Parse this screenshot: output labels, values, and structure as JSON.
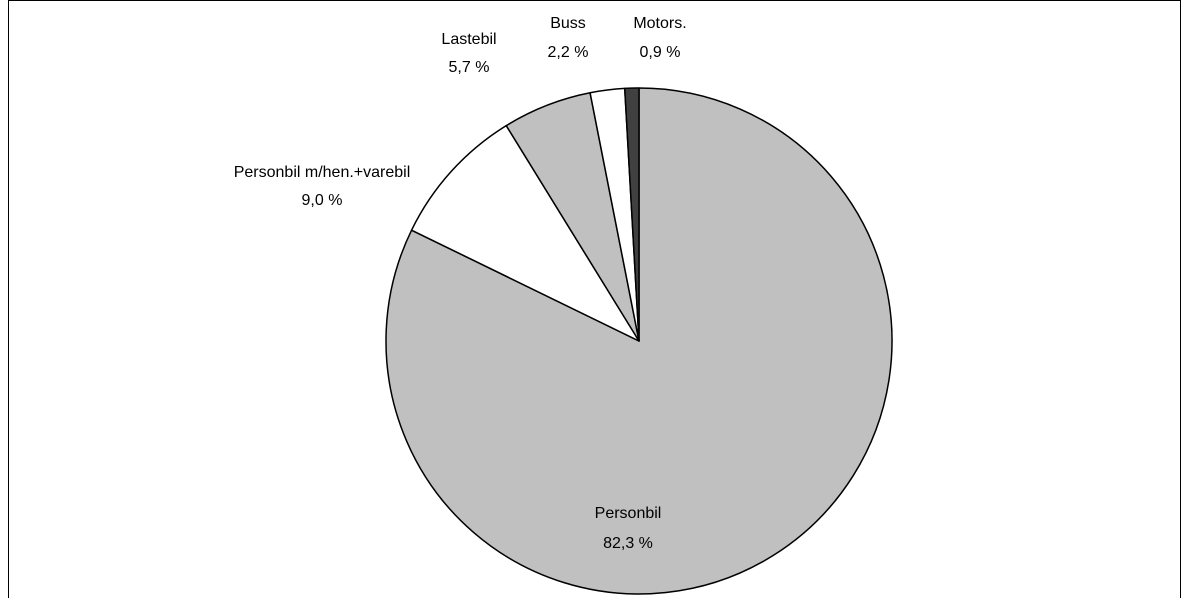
{
  "chart_data": {
    "type": "pie",
    "title": "",
    "slices": [
      {
        "label": "Personbil",
        "value_text": "82,3 %",
        "value": 82.3,
        "color": "#c0c0c0"
      },
      {
        "label": "Personbil m/hen.+varebil",
        "value_text": "9,0 %",
        "value": 9.0,
        "color": "#ffffff"
      },
      {
        "label": "Lastebil",
        "value_text": "5,7 %",
        "value": 5.7,
        "color": "#c0c0c0"
      },
      {
        "label": "Buss",
        "value_text": "2,2 %",
        "value": 2.2,
        "color": "#ffffff"
      },
      {
        "label": "Motors.",
        "value_text": "0,9 %",
        "value": 0.9,
        "color": "#404040"
      }
    ],
    "start": "12 o'clock",
    "direction": "clockwise",
    "legend": "none",
    "stroke_color": "#000000"
  }
}
